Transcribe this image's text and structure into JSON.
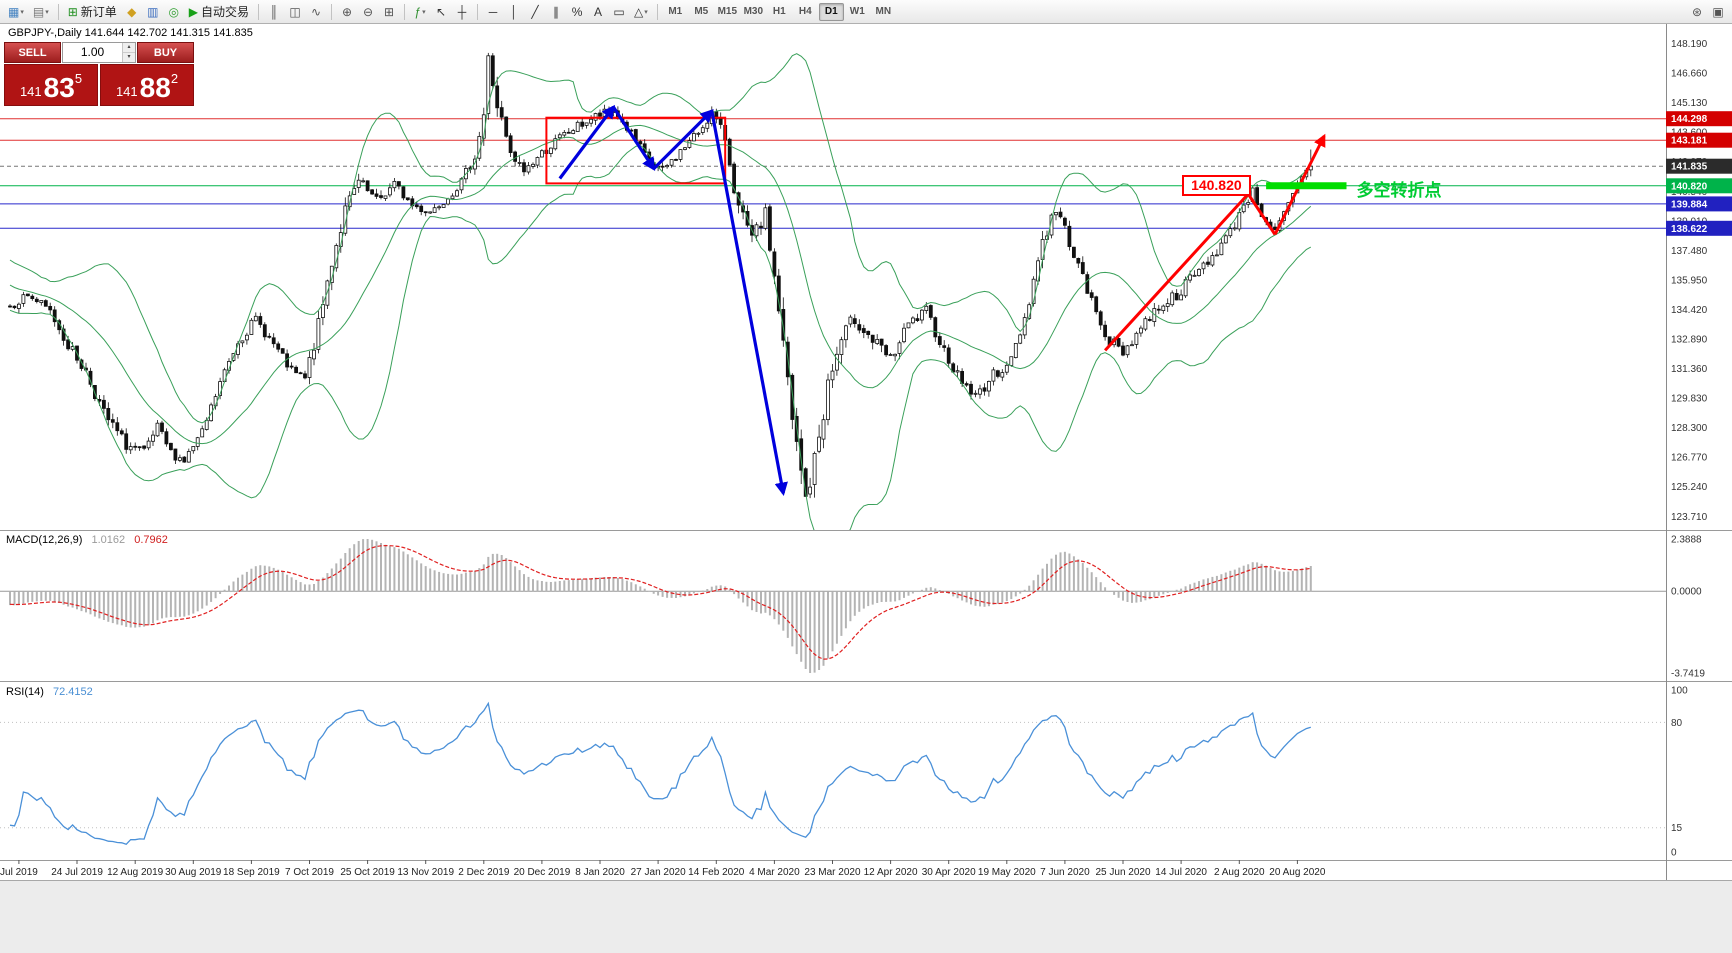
{
  "toolbar": {
    "caret_glyph": "▾",
    "items": [
      {
        "glyph": "▦",
        "name": "new-chart-icon",
        "color": "#3f7fbf",
        "caret": true
      },
      {
        "glyph": "▤",
        "name": "profiles-icon",
        "color": "#777777",
        "caret": true
      },
      {
        "sep": true
      },
      {
        "glyph": "⊞",
        "name": "new-order-icon",
        "color": "#1f8f1f",
        "label": "新订单",
        "button": "new-order-button"
      },
      {
        "glyph": "◆",
        "name": "alerts-icon",
        "color": "#d0a020"
      },
      {
        "glyph": "▥",
        "name": "market-watch-icon",
        "color": "#3f6fbf"
      },
      {
        "glyph": "◎",
        "name": "community-icon",
        "color": "#2f9f2f"
      },
      {
        "glyph": "▶",
        "name": "autotrading-icon",
        "color": "#18a018",
        "label": "自动交易",
        "button": "autotrading-button"
      },
      {
        "sep": true
      },
      {
        "glyph": "║",
        "name": "bar-chart-icon",
        "color": "#555555"
      },
      {
        "glyph": "◫",
        "name": "candlestick-chart-icon",
        "color": "#555555"
      },
      {
        "glyph": "∿",
        "name": "line-chart-icon",
        "color": "#555555"
      },
      {
        "sep": true
      },
      {
        "glyph": "⊕",
        "name": "zoom-in-icon",
        "color": "#555555"
      },
      {
        "glyph": "⊖",
        "name": "zoom-out-icon",
        "color": "#555555"
      },
      {
        "glyph": "⊞",
        "name": "tile-windows-icon",
        "color": "#555555"
      },
      {
        "sep": true
      },
      {
        "glyph": "ƒ",
        "name": "indicators-icon",
        "color": "#2f8f2f",
        "caret": true
      },
      {
        "glyph": "↖",
        "name": "cursor-icon",
        "color": "#333333"
      },
      {
        "glyph": "┼",
        "name": "crosshair-icon",
        "color": "#333333"
      },
      {
        "sep": true
      },
      {
        "glyph": "─",
        "name": "horizontal-line-icon",
        "color": "#333333"
      },
      {
        "glyph": "│",
        "name": "vertical-line-icon",
        "color": "#333333"
      },
      {
        "glyph": "╱",
        "name": "trendline-icon",
        "color": "#333333"
      },
      {
        "glyph": "∥",
        "name": "equidistant-channel-icon",
        "color": "#333333"
      },
      {
        "glyph": "%",
        "name": "fibonacci-icon",
        "color": "#333333"
      },
      {
        "glyph": "A",
        "name": "text-icon",
        "color": "#333333"
      },
      {
        "glyph": "▭",
        "name": "label-icon",
        "color": "#333333"
      },
      {
        "glyph": "△",
        "name": "shapes-icon",
        "color": "#333333",
        "caret": true
      },
      {
        "sep": true
      }
    ],
    "timeframes": [
      "M1",
      "M5",
      "M15",
      "M30",
      "H1",
      "H4",
      "D1",
      "W1",
      "MN"
    ],
    "active_timeframe": "D1",
    "right_items": [
      {
        "glyph": "⊛",
        "name": "search-icon",
        "color": "#555555"
      },
      {
        "glyph": "▣",
        "name": "chart-shift-icon",
        "color": "#555555"
      }
    ]
  },
  "chart": {
    "symbol_line": "GBPJPY-,Daily  141.644 142.702 141.315 141.835",
    "one_click": {
      "sell_label": "SELL",
      "buy_label": "BUY",
      "lot": "1.00",
      "spin_up": "▴",
      "spin_down": "▾",
      "sell_prefix": "141",
      "sell_main": "83",
      "sell_sup": "5",
      "buy_prefix": "141",
      "buy_main": "88",
      "buy_sup": "2"
    },
    "macd": {
      "label": "MACD(12,26,9)",
      "main": "1.0162",
      "signal": "0.7962"
    },
    "rsi": {
      "label": "RSI(14)",
      "value": "72.4152"
    }
  },
  "chart_data": {
    "type": "candlestick",
    "symbol": "GBPJPY-",
    "timeframe": "Daily",
    "last_ohlc": {
      "open": 141.644,
      "high": 142.702,
      "low": 141.315,
      "close": 141.835
    },
    "seed": 7,
    "anchors": [
      [
        -40,
        139.5,
        0.6
      ],
      [
        -28,
        137.6,
        0.6
      ],
      [
        -14,
        136.2,
        0.5
      ],
      [
        0,
        134.6,
        0.5
      ],
      [
        4,
        135.2,
        0.5
      ],
      [
        9,
        134.3,
        0.5
      ],
      [
        13,
        132.6,
        0.6
      ],
      [
        17,
        131.2,
        0.6
      ],
      [
        21,
        129.0,
        0.7
      ],
      [
        26,
        127.4,
        0.6
      ],
      [
        30,
        127.0,
        0.5
      ],
      [
        33,
        128.3,
        0.5
      ],
      [
        36,
        127.0,
        0.5
      ],
      [
        39,
        126.6,
        0.5
      ],
      [
        43,
        128.0,
        0.5
      ],
      [
        47,
        130.6,
        0.6
      ],
      [
        51,
        132.8,
        0.6
      ],
      [
        55,
        133.9,
        0.5
      ],
      [
        59,
        132.6,
        0.5
      ],
      [
        63,
        131.2,
        0.5
      ],
      [
        66,
        130.8,
        0.6
      ],
      [
        69,
        133.5,
        0.9
      ],
      [
        72,
        137.0,
        1.0
      ],
      [
        75,
        139.5,
        0.9
      ],
      [
        78,
        141.0,
        0.7
      ],
      [
        82,
        140.0,
        0.6
      ],
      [
        86,
        140.9,
        0.5
      ],
      [
        90,
        139.8,
        0.5
      ],
      [
        94,
        139.5,
        0.5
      ],
      [
        98,
        140.3,
        0.5
      ],
      [
        101,
        141.0,
        0.5
      ],
      [
        104,
        142.4,
        0.6
      ],
      [
        106,
        144.5,
        0.9
      ],
      [
        107,
        147.3,
        1.1
      ],
      [
        109,
        145.0,
        1.0
      ],
      [
        112,
        142.3,
        0.8
      ],
      [
        115,
        141.6,
        0.6
      ],
      [
        119,
        142.5,
        0.5
      ],
      [
        123,
        143.3,
        0.5
      ],
      [
        127,
        143.9,
        0.5
      ],
      [
        131,
        144.4,
        0.5
      ],
      [
        135,
        144.7,
        0.5
      ],
      [
        139,
        143.5,
        0.5
      ],
      [
        143,
        142.0,
        0.5
      ],
      [
        146,
        141.6,
        0.5
      ],
      [
        150,
        142.6,
        0.5
      ],
      [
        154,
        143.6,
        0.5
      ],
      [
        157,
        144.6,
        0.5
      ],
      [
        160,
        143.3,
        0.6
      ],
      [
        163,
        139.6,
        1.0
      ],
      [
        166,
        138.0,
        0.8
      ],
      [
        169,
        139.3,
        0.8
      ],
      [
        172,
        134.5,
        1.4
      ],
      [
        175,
        128.5,
        1.8
      ],
      [
        178,
        124.6,
        1.5
      ],
      [
        180,
        126.5,
        1.4
      ],
      [
        183,
        130.5,
        1.2
      ],
      [
        186,
        132.8,
        1.0
      ],
      [
        189,
        134.0,
        0.9
      ],
      [
        193,
        132.8,
        0.8
      ],
      [
        197,
        131.8,
        0.7
      ],
      [
        201,
        133.6,
        0.7
      ],
      [
        205,
        134.3,
        0.6
      ],
      [
        209,
        132.3,
        0.6
      ],
      [
        212,
        131.0,
        0.6
      ],
      [
        216,
        129.9,
        0.6
      ],
      [
        220,
        131.0,
        0.6
      ],
      [
        224,
        131.8,
        0.6
      ],
      [
        227,
        134.0,
        0.8
      ],
      [
        231,
        138.0,
        1.0
      ],
      [
        234,
        139.6,
        0.8
      ],
      [
        237,
        138.0,
        0.7
      ],
      [
        240,
        136.0,
        0.7
      ],
      [
        243,
        134.2,
        0.7
      ],
      [
        246,
        132.8,
        0.6
      ],
      [
        249,
        132.2,
        0.6
      ],
      [
        253,
        133.5,
        0.6
      ],
      [
        257,
        134.6,
        0.6
      ],
      [
        261,
        135.2,
        0.6
      ],
      [
        265,
        136.2,
        0.6
      ],
      [
        269,
        137.2,
        0.6
      ],
      [
        273,
        138.4,
        0.6
      ],
      [
        276,
        139.9,
        0.6
      ],
      [
        278,
        140.5,
        0.5
      ],
      [
        280,
        139.4,
        0.5
      ],
      [
        283,
        138.4,
        0.5
      ],
      [
        285,
        139.3,
        0.5
      ],
      [
        287,
        140.3,
        0.6
      ],
      [
        289,
        141.2,
        0.6
      ],
      [
        291,
        141.835,
        0.5
      ]
    ],
    "indicators": {
      "bollinger": {
        "period": 20,
        "deviation": 2,
        "color": "#3aa05a"
      },
      "macd": {
        "fast": 12,
        "slow": 26,
        "signal": 9,
        "current_main": 1.0162,
        "current_signal": 0.7962,
        "scale_max": 2.3888,
        "scale_min": -3.7419,
        "hist_color": "#b4b4b4",
        "signal_color": "#e02020"
      },
      "rsi": {
        "period": 14,
        "current": 72.4152,
        "levels": [
          80,
          15
        ],
        "color": "#4a90d8"
      }
    },
    "price_axis": {
      "grid_labels": [
        "148.190",
        "146.660",
        "145.130",
        "143.600",
        "142.070",
        "140.540",
        "139.010",
        "137.480",
        "135.950",
        "134.420",
        "132.890",
        "131.360",
        "129.830",
        "128.300",
        "126.770",
        "125.240",
        "123.710"
      ],
      "tags": [
        {
          "price": 144.298,
          "text": "144.298",
          "color": "#d40000"
        },
        {
          "price": 143.181,
          "text": "143.181",
          "color": "#d40000"
        },
        {
          "price": 141.835,
          "text": "141.835",
          "color": "#2b2b2b"
        },
        {
          "price": 140.82,
          "text": "140.820",
          "color": "#00b34a"
        },
        {
          "price": 139.884,
          "text": "139.884",
          "color": "#2121c0"
        },
        {
          "price": 138.622,
          "text": "138.622",
          "color": "#2121c0"
        }
      ]
    },
    "hlines": [
      {
        "price": 144.298,
        "color": "#e03030"
      },
      {
        "price": 143.181,
        "color": "#e03030"
      },
      {
        "price": 141.835,
        "color": "#777777",
        "dash": "4 3"
      },
      {
        "price": 140.82,
        "color": "#00b34a"
      },
      {
        "price": 139.884,
        "color": "#2828cc"
      },
      {
        "price": 138.622,
        "color": "#2828cc"
      }
    ],
    "macd_axis_labels": [
      "2.3888",
      "0.0000",
      "-3.7419"
    ],
    "rsi_axis_labels": [
      "100",
      "80",
      "15",
      "0"
    ],
    "date_labels": [
      "Jul 2019",
      "24 Jul 2019",
      "12 Aug 2019",
      "30 Aug 2019",
      "18 Sep 2019",
      "7 Oct 2019",
      "25 Oct 2019",
      "13 Nov 2019",
      "2 Dec 2019",
      "20 Dec 2019",
      "8 Jan 2020",
      "27 Jan 2020",
      "14 Feb 2020",
      "4 Mar 2020",
      "23 Mar 2020",
      "12 Apr 2020",
      "30 Apr 2020",
      "19 May 2020",
      "7 Jun 2020",
      "25 Jun 2020",
      "14 Jul 2020",
      "2 Aug 2020",
      "20 Aug 2020"
    ],
    "date_label_start_idx": 2,
    "date_label_step": 13,
    "annotations": {
      "red_rect": {
        "i0": 120,
        "i1": 160,
        "p0": 140.95,
        "p1": 144.35,
        "color": "#ff0000"
      },
      "blue_zigzag": {
        "points": [
          [
            123,
            141.2
          ],
          [
            135,
            144.9
          ],
          [
            144,
            141.7
          ],
          [
            157,
            144.7
          ],
          [
            173,
            124.9
          ]
        ],
        "color": "#0000dd"
      },
      "red_path": {
        "points": [
          [
            245,
            132.3
          ],
          [
            277,
            140.4
          ],
          [
            283,
            138.3
          ],
          [
            294,
            143.4
          ]
        ],
        "color": "#ff0000"
      },
      "green_bar": {
        "i0": 281,
        "i1": 299,
        "price": 140.82,
        "color": "#00dd00",
        "width": 7
      },
      "price_label": {
        "text": "140.820",
        "color": "#ff0000"
      },
      "turning_text": {
        "text": "多空转折点",
        "color": "#00cc33"
      }
    }
  }
}
